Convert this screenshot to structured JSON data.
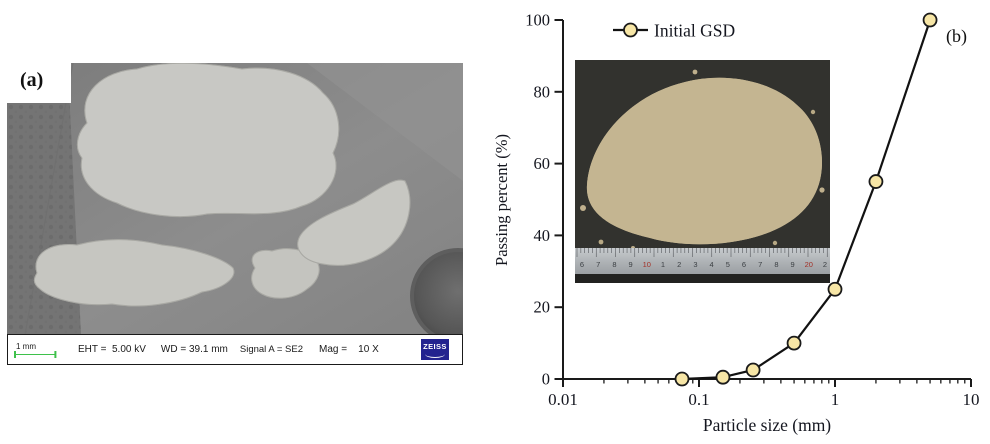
{
  "figure": {
    "panel_a": {
      "label": "(a)"
    },
    "panel_b": {
      "label": "(b)"
    }
  },
  "sem_panel": {
    "info_bar": {
      "scale_label": "1 mm",
      "eht": "EHT =  5.00 kV",
      "wd": "WD = 39.1 mm",
      "signal": "Signal A = SE2",
      "mag": "Mag =    10 X",
      "logo_text": "ZEISS"
    },
    "colors": {
      "scale_bar_green": "#3ec14b",
      "zeiss_blue": "#23238f"
    }
  },
  "inset_photo": {
    "description": "pile of coral sand particles on dark background with steel ruler",
    "ruler": {
      "numbers": [
        "6",
        "7",
        "8",
        "9",
        "10",
        "1",
        "2",
        "3",
        "4",
        "5",
        "6",
        "7",
        "8",
        "9",
        "20",
        "2"
      ],
      "red_numbers": [
        "10",
        "20"
      ],
      "red_color": "#a33128",
      "digit_color": "#3c4044"
    }
  },
  "chart_data": {
    "type": "line",
    "title": "",
    "xlabel": "Particle size (mm)",
    "ylabel": "Passing percent (%)",
    "x_scale": "log",
    "xlim": [
      0.01,
      10
    ],
    "ylim": [
      0,
      100
    ],
    "x_ticks": [
      0.01,
      0.1,
      1,
      10
    ],
    "x_tick_labels": [
      "0.01",
      "0.1",
      "1",
      "10"
    ],
    "y_ticks": [
      0,
      20,
      40,
      60,
      80,
      100
    ],
    "grid": false,
    "legend": {
      "position": "top-inside"
    },
    "series": [
      {
        "name": "Initial GSD",
        "x": [
          0.075,
          0.15,
          0.25,
          0.5,
          1,
          2,
          5
        ],
        "y": [
          0,
          0.5,
          2.5,
          10,
          25,
          55,
          100
        ],
        "line_color": "#121212",
        "marker": "circle",
        "marker_fill": "#f7e6a6",
        "marker_stroke": "#1a1a1a",
        "marker_radius": 6.5
      }
    ]
  }
}
